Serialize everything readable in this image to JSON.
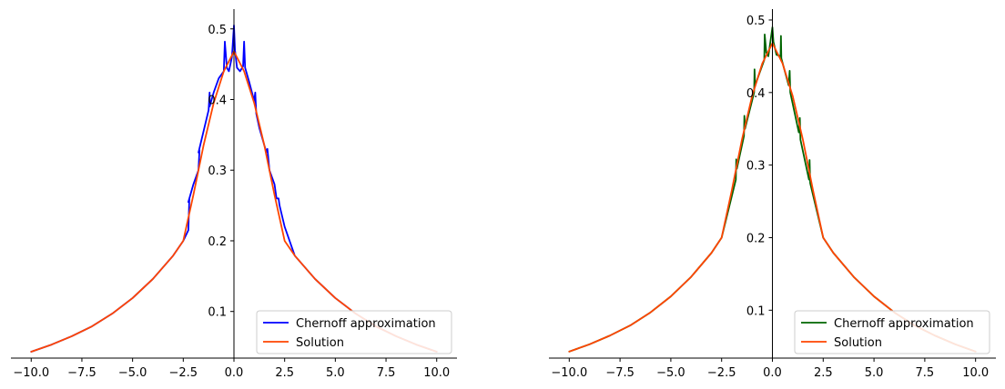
{
  "chart_data": [
    {
      "type": "line",
      "xlim": [
        -11,
        11
      ],
      "ylim": [
        0.034,
        0.528
      ],
      "xticks": [
        -10.0,
        -7.5,
        -5.0,
        -2.5,
        0.0,
        2.5,
        5.0,
        7.5,
        10.0
      ],
      "xtick_labels": [
        "−10.0",
        "−7.5",
        "−5.0",
        "−2.5",
        "0.0",
        "2.5",
        "5.0",
        "7.5",
        "10.0"
      ],
      "yticks": [
        0.1,
        0.2,
        0.3,
        0.4,
        0.5
      ],
      "ytick_labels": [
        "0.1",
        "0.2",
        "0.3",
        "0.4",
        "0.5"
      ],
      "grid": false,
      "legend_position": "lower-right",
      "series": [
        {
          "name": "Chernoff approximation",
          "color": "#0000ff",
          "x": [
            -10,
            -9,
            -8,
            -7,
            -6,
            -5,
            -4,
            -3,
            -2.5,
            -2.25,
            -2.2,
            -2.25,
            -2.0,
            -1.75,
            -1.7,
            -1.75,
            -1.5,
            -1.25,
            -1.2,
            -1.2,
            -1.0,
            -0.75,
            -0.5,
            -0.45,
            -0.35,
            -0.25,
            -0.1,
            0.0,
            0.05,
            0.15,
            0.3,
            0.45,
            0.5,
            0.55,
            0.75,
            1.0,
            1.05,
            1.1,
            1.25,
            1.5,
            1.6,
            1.65,
            1.75,
            2.0,
            2.1,
            2.2,
            2.25,
            2.5,
            3,
            4,
            5,
            6,
            7,
            8,
            9,
            10
          ],
          "y": [
            0.043,
            0.053,
            0.065,
            0.079,
            0.097,
            0.119,
            0.146,
            0.179,
            0.2,
            0.215,
            0.26,
            0.255,
            0.28,
            0.3,
            0.328,
            0.325,
            0.355,
            0.385,
            0.41,
            0.39,
            0.41,
            0.43,
            0.44,
            0.482,
            0.445,
            0.44,
            0.46,
            0.505,
            0.47,
            0.445,
            0.44,
            0.447,
            0.482,
            0.445,
            0.425,
            0.398,
            0.41,
            0.38,
            0.36,
            0.335,
            0.326,
            0.33,
            0.3,
            0.28,
            0.26,
            0.26,
            0.25,
            0.22,
            0.179,
            0.146,
            0.119,
            0.097,
            0.079,
            0.065,
            0.053,
            0.043
          ]
        },
        {
          "name": "Solution",
          "color": "#ff4500",
          "x": [
            -10,
            -9,
            -8,
            -7,
            -6,
            -5,
            -4,
            -3,
            -2.5,
            -2,
            -1.5,
            -1,
            -0.5,
            0,
            0.5,
            1,
            1.5,
            2,
            2.5,
            3,
            4,
            5,
            6,
            7,
            8,
            9,
            10
          ],
          "y": [
            0.043,
            0.053,
            0.065,
            0.079,
            0.097,
            0.119,
            0.146,
            0.179,
            0.2,
            0.265,
            0.335,
            0.395,
            0.44,
            0.468,
            0.44,
            0.395,
            0.335,
            0.265,
            0.2,
            0.179,
            0.146,
            0.119,
            0.097,
            0.079,
            0.065,
            0.053,
            0.043
          ]
        }
      ]
    },
    {
      "type": "line",
      "xlim": [
        -11,
        11
      ],
      "ylim": [
        0.034,
        0.515
      ],
      "xticks": [
        -10.0,
        -7.5,
        -5.0,
        -2.5,
        0.0,
        2.5,
        5.0,
        7.5,
        10.0
      ],
      "xtick_labels": [
        "−10.0",
        "−7.5",
        "−5.0",
        "−2.5",
        "0.0",
        "2.5",
        "5.0",
        "7.5",
        "10.0"
      ],
      "yticks": [
        0.1,
        0.2,
        0.3,
        0.4,
        0.5
      ],
      "ytick_labels": [
        "0.1",
        "0.2",
        "0.3",
        "0.4",
        "0.5"
      ],
      "grid": false,
      "legend_position": "lower-right",
      "series": [
        {
          "name": "Chernoff approximation",
          "color": "#006400",
          "x": [
            -10,
            -9,
            -8,
            -7,
            -6,
            -5,
            -4,
            -3,
            -2.5,
            -1.8,
            -1.78,
            -1.75,
            -1.4,
            -1.38,
            -1.35,
            -0.9,
            -0.88,
            -0.85,
            -0.4,
            -0.38,
            -0.3,
            -0.2,
            0.0,
            0.05,
            0.2,
            0.4,
            0.42,
            0.44,
            0.8,
            0.85,
            0.88,
            1.3,
            1.35,
            1.38,
            1.8,
            1.83,
            1.86,
            2.5,
            3,
            4,
            5,
            6,
            7,
            8,
            9,
            10
          ],
          "y": [
            0.043,
            0.053,
            0.065,
            0.079,
            0.097,
            0.119,
            0.146,
            0.179,
            0.2,
            0.28,
            0.308,
            0.295,
            0.34,
            0.368,
            0.35,
            0.4,
            0.432,
            0.41,
            0.445,
            0.48,
            0.455,
            0.45,
            0.49,
            0.47,
            0.452,
            0.45,
            0.478,
            0.447,
            0.41,
            0.43,
            0.4,
            0.345,
            0.365,
            0.335,
            0.28,
            0.307,
            0.275,
            0.2,
            0.179,
            0.146,
            0.119,
            0.097,
            0.079,
            0.065,
            0.053,
            0.043
          ]
        },
        {
          "name": "Solution",
          "color": "#ff4500",
          "x": [
            -10,
            -9,
            -8,
            -7,
            -6,
            -5,
            -4,
            -3,
            -2.5,
            -2,
            -1.5,
            -1,
            -0.5,
            0,
            0.5,
            1,
            1.5,
            2,
            2.5,
            3,
            4,
            5,
            6,
            7,
            8,
            9,
            10
          ],
          "y": [
            0.043,
            0.053,
            0.065,
            0.079,
            0.097,
            0.119,
            0.146,
            0.179,
            0.2,
            0.265,
            0.335,
            0.395,
            0.44,
            0.468,
            0.44,
            0.395,
            0.335,
            0.265,
            0.2,
            0.179,
            0.146,
            0.119,
            0.097,
            0.079,
            0.065,
            0.053,
            0.043
          ]
        }
      ]
    }
  ]
}
